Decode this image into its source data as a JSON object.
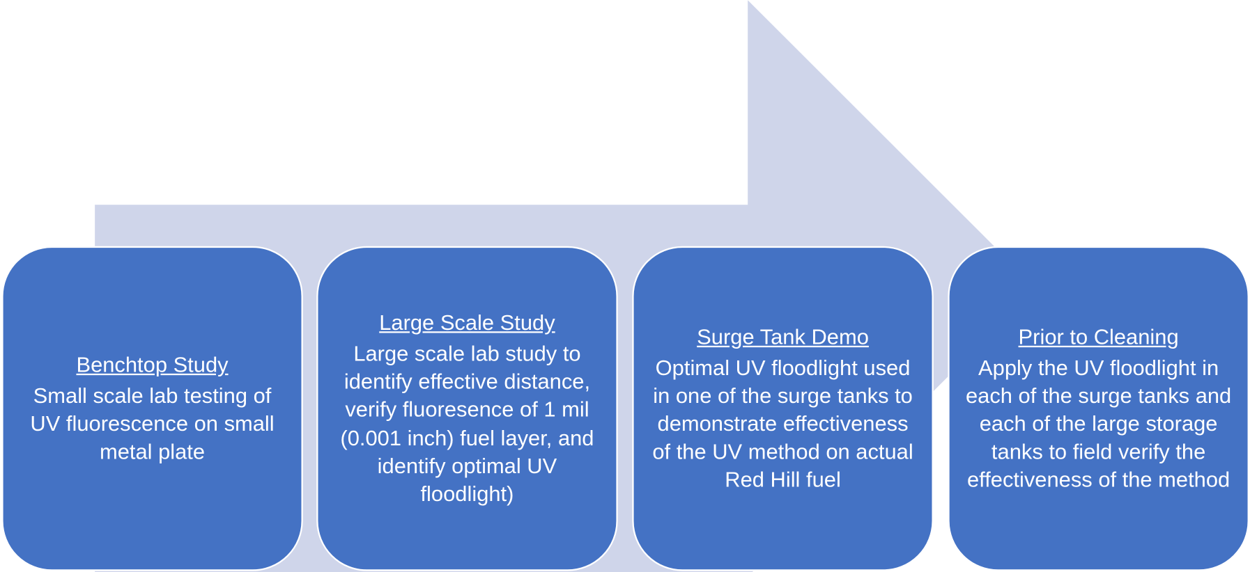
{
  "steps": [
    {
      "title": "Benchtop Study",
      "text": "Small scale lab testing of UV fluorescence on small metal plate"
    },
    {
      "title": "Large Scale Study",
      "text": "Large scale lab study to identify effective distance, verify fluoresence of 1 mil (0.001 inch) fuel layer, and identify optimal UV floodlight)"
    },
    {
      "title": "Surge Tank Demo",
      "text": "Optimal UV floodlight used in one of the surge tanks to demonstrate effectiveness of the UV method on actual Red Hill fuel"
    },
    {
      "title": "Prior to Cleaning",
      "text": "Apply the UV floodlight in each of the surge tanks and each of the large storage tanks to field verify the effectiveness of the method"
    }
  ]
}
